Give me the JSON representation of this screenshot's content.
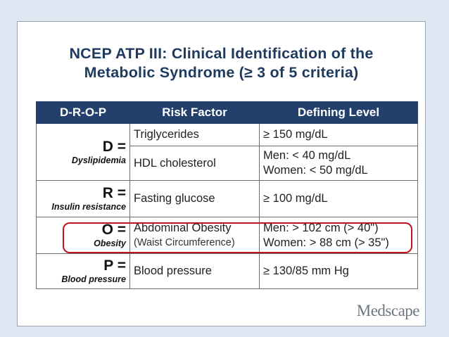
{
  "slide": {
    "title_line1": "NCEP ATP III: Clinical Identification of the",
    "title_line2": "Metabolic Syndrome (≥ 3 of 5 criteria)"
  },
  "table": {
    "headers": [
      "D-R-O-P",
      "Risk Factor",
      "Defining Level"
    ],
    "rows": {
      "d": {
        "letter": "D =",
        "label": "Dyslipidemia",
        "factor1": "Triglycerides",
        "level1": "≥ 150 mg/dL",
        "factor2": "HDL cholesterol",
        "level2_line1": "Men: < 40 mg/dL",
        "level2_line2": "Women: < 50 mg/dL"
      },
      "r": {
        "letter": "R =",
        "label": "Insulin resistance",
        "factor": "Fasting glucose",
        "level": "≥ 100 mg/dL"
      },
      "o": {
        "letter": "O =",
        "label": "Obesity",
        "factor_line1": "Abdominal Obesity",
        "factor_line2": "(Waist Circumference)",
        "level_line1": "Men: > 102 cm (> 40\")",
        "level_line2": "Women: > 88 cm (> 35\")"
      },
      "p": {
        "letter": "P =",
        "label": "Blood pressure",
        "factor": "Blood pressure",
        "level": "≥ 130/85 mm Hg"
      }
    }
  },
  "logo": {
    "text": "Medscape"
  },
  "colors": {
    "header_bg": "#233f6b",
    "title": "#1f3a5f",
    "highlight": "#c1121f",
    "background": "#dfe7f2"
  }
}
